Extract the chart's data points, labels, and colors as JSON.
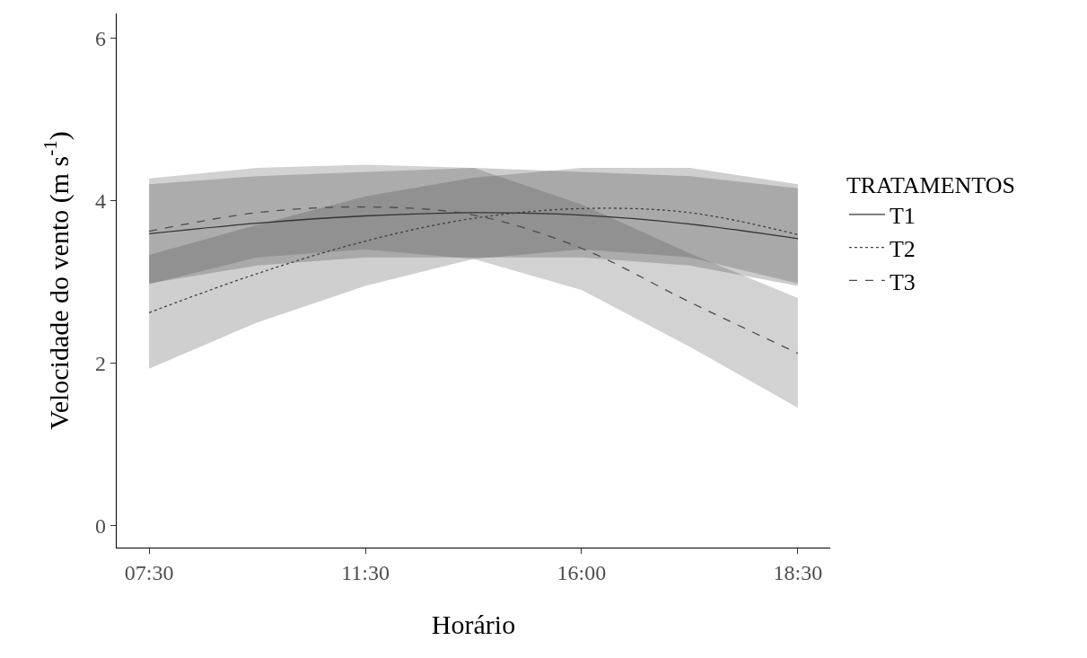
{
  "chart_data": {
    "type": "line",
    "xlabel": "Horário",
    "ylabel": "Velocidade do vento (m s$^{-1}$)",
    "legend_title": "TRATAMENTOS",
    "legend": "right",
    "grid": false,
    "marker": "none",
    "categories": [
      "07:30",
      null,
      "11:30",
      null,
      "16:00",
      null,
      "18:30"
    ],
    "ylim": [
      -0.27,
      6.3
    ],
    "yticks": [
      0,
      2,
      4,
      6
    ],
    "series": [
      {
        "name": "T1",
        "color": "#333333",
        "line_style": "solid",
        "values": [
          3.59,
          3.72,
          3.81,
          3.85,
          3.82,
          3.71,
          3.53
        ],
        "lower": [
          2.98,
          3.2,
          3.3,
          3.3,
          3.3,
          3.2,
          2.95
        ],
        "upper": [
          4.2,
          4.3,
          4.35,
          4.4,
          4.35,
          4.3,
          4.15
        ]
      },
      {
        "name": "T2",
        "color": "#404040",
        "line_style": "dotted",
        "values": [
          2.62,
          3.1,
          3.5,
          3.78,
          3.9,
          3.85,
          3.58
        ],
        "lower": [
          1.93,
          2.5,
          2.95,
          3.28,
          3.4,
          3.3,
          2.98
        ],
        "upper": [
          3.33,
          3.7,
          4.05,
          4.28,
          4.4,
          4.4,
          4.2
        ]
      },
      {
        "name": "T3",
        "color": "#4d4d4d",
        "line_style": "dashed",
        "values": [
          3.62,
          3.85,
          3.92,
          3.82,
          3.41,
          2.75,
          2.12
        ],
        "lower": [
          2.97,
          3.3,
          3.4,
          3.28,
          2.9,
          2.2,
          1.45
        ],
        "upper": [
          4.27,
          4.4,
          4.44,
          4.4,
          3.95,
          3.35,
          2.8
        ]
      }
    ]
  }
}
